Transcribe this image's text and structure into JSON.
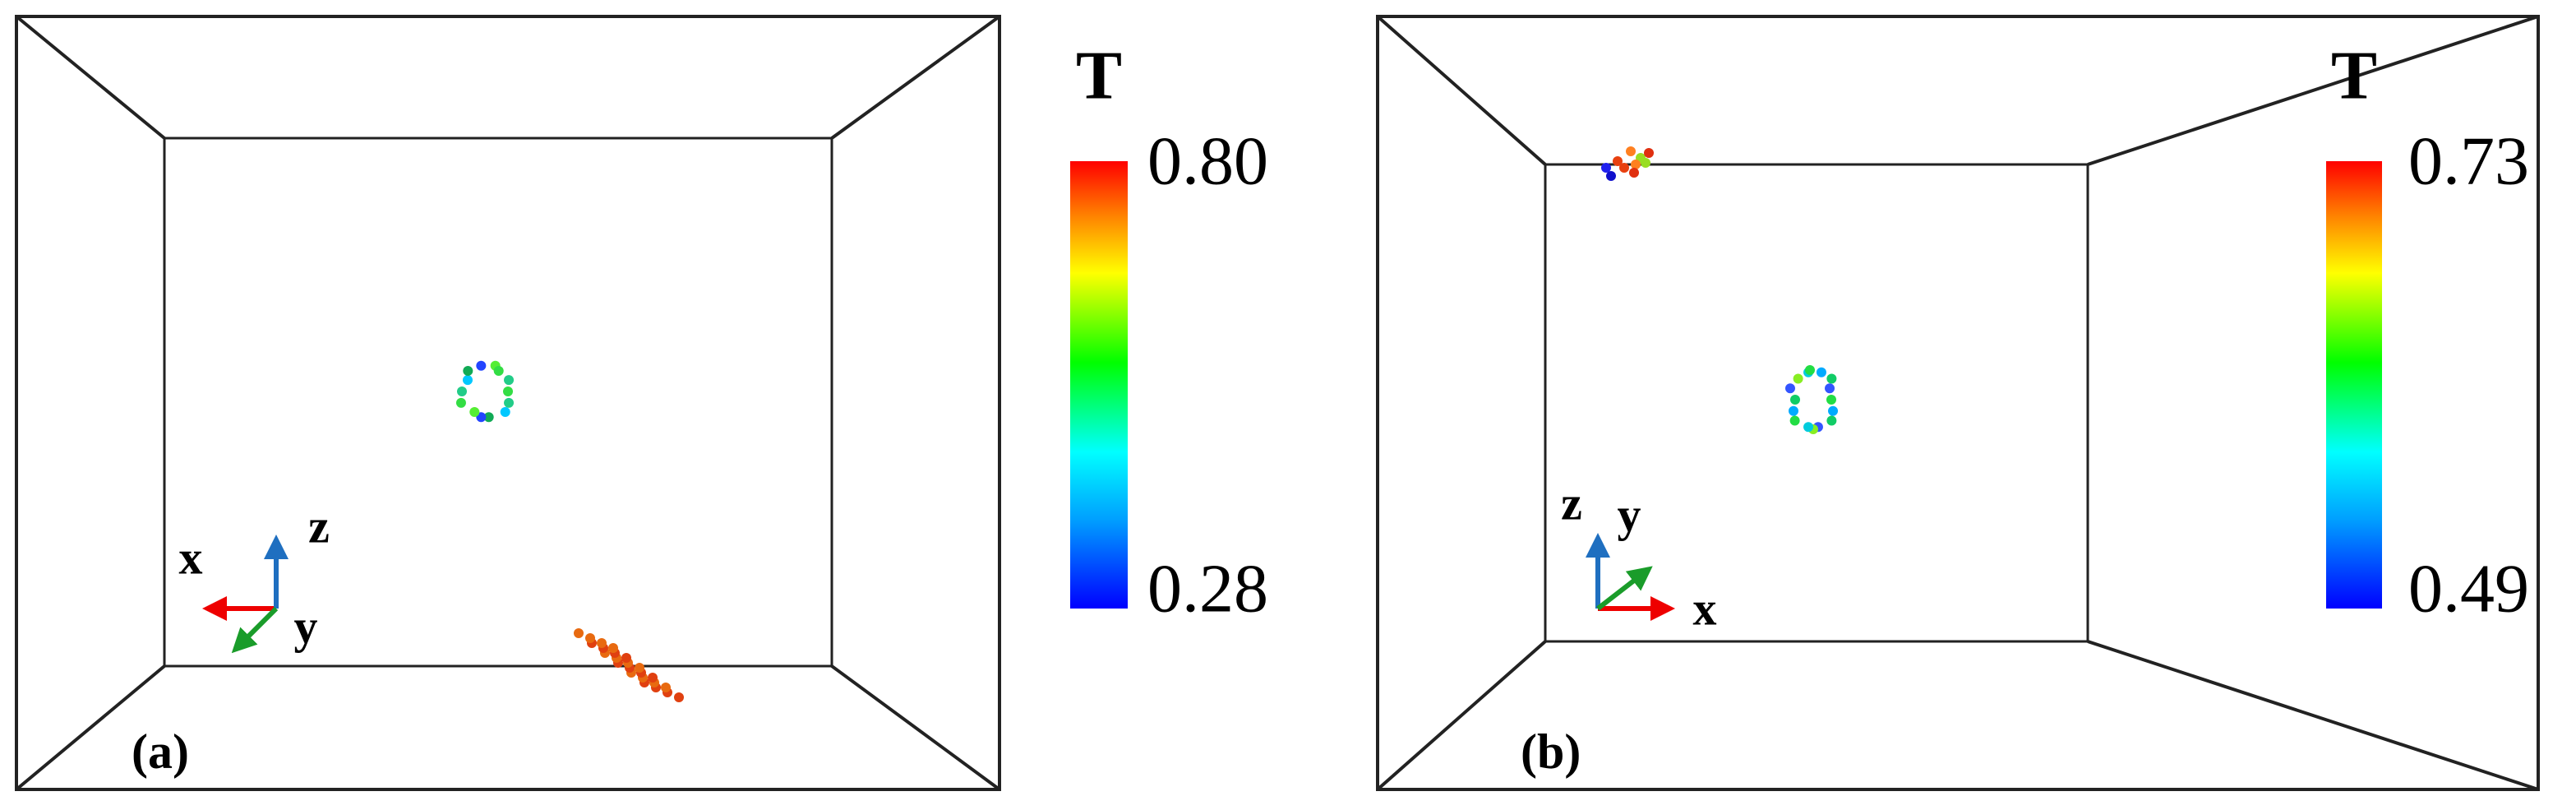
{
  "panels": [
    {
      "label": "(a)",
      "colorbar": {
        "title": "T",
        "max": "0.80",
        "min": "0.28"
      },
      "axes": {
        "x": "x",
        "y": "y",
        "z": "z"
      }
    },
    {
      "label": "(b)",
      "colorbar": {
        "title": "T",
        "max": "0.73",
        "min": "0.49"
      },
      "axes": {
        "x": "x",
        "y": "y",
        "z": "z"
      }
    }
  ]
}
